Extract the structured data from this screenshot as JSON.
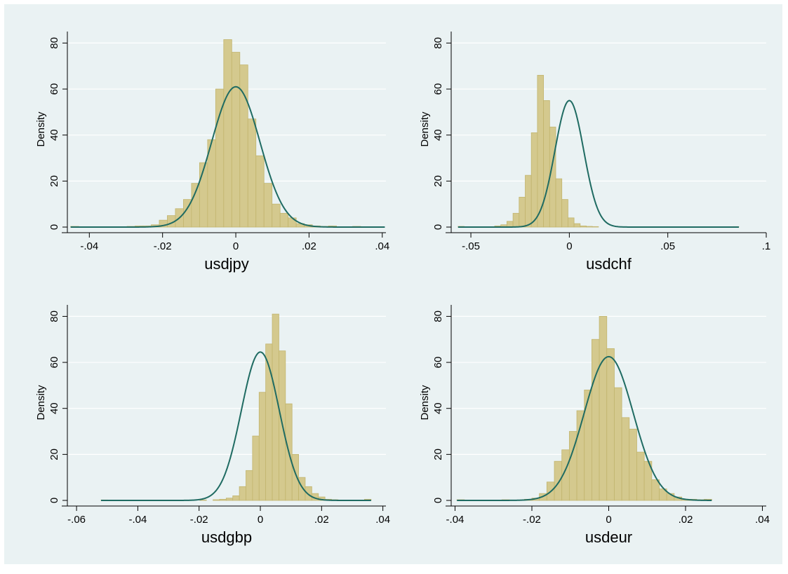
{
  "colors": {
    "background": "#ffffff",
    "plot_region": "#eaf2f3",
    "bar_fill": "#d4c98e",
    "bar_stroke": "#c2b56e",
    "curve": "#1f6b62",
    "grid": "#dfe9eb",
    "axis": "#000000"
  },
  "chart_data": [
    {
      "type": "bar",
      "xlabel": "usdjpy",
      "ylabel": "Density",
      "xlim": [
        -0.046,
        0.041
      ],
      "ylim": [
        0,
        85
      ],
      "xticks": [
        -0.04,
        -0.02,
        0,
        0.02,
        0.04
      ],
      "xtick_labels": [
        "-.04",
        "-.02",
        "0",
        ".02",
        ".04"
      ],
      "yticks": [
        0,
        20,
        40,
        60,
        80
      ],
      "ytick_labels": [
        "0",
        "20",
        "40",
        "60",
        "80"
      ],
      "bin_width": 0.0022,
      "bins_start": -0.0451,
      "values": [
        0.3,
        0,
        0,
        0,
        0,
        0,
        0,
        0.3,
        0.5,
        0.5,
        1,
        3,
        5,
        8,
        12,
        19,
        28,
        38,
        60,
        81.5,
        76,
        70.5,
        47,
        31,
        19,
        10,
        6,
        4,
        1.5,
        1,
        0.5,
        0.3,
        0.5,
        0,
        0,
        0.3,
        0,
        0,
        0
      ],
      "normal_curve": {
        "mean": 0,
        "peak": 61,
        "sd": 0.0066
      },
      "grid": true
    },
    {
      "type": "bar",
      "xlabel": "usdchf",
      "ylabel": "Density",
      "xlim": [
        -0.06,
        0.1
      ],
      "ylim": [
        0,
        85
      ],
      "xticks": [
        -0.05,
        0,
        0.05,
        0.1
      ],
      "xtick_labels": [
        "-.05",
        "0",
        ".05",
        ".1"
      ],
      "yticks": [
        0,
        20,
        40,
        60,
        80
      ],
      "ytick_labels": [
        "0",
        "20",
        "40",
        "60",
        "80"
      ],
      "bin_width": 0.0031,
      "bins_start": -0.0565,
      "values": [
        0.3,
        0,
        0,
        0,
        0,
        0,
        0.5,
        1,
        2.5,
        6,
        13,
        22.5,
        41,
        66,
        55,
        43.5,
        21,
        12,
        4,
        1.5,
        0.5,
        0.3,
        0.2,
        0,
        0,
        0,
        0,
        0,
        0,
        0,
        0,
        0,
        0,
        0,
        0,
        0,
        0,
        0,
        0,
        0,
        0,
        0,
        0,
        0,
        0,
        0.2
      ],
      "normal_curve": {
        "mean": 0,
        "peak": 55,
        "sd": 0.0073
      },
      "grid": true
    },
    {
      "type": "bar",
      "xlabel": "usdgbp",
      "ylabel": "Density",
      "xlim": [
        -0.063,
        0.041
      ],
      "ylim": [
        0,
        85
      ],
      "xticks": [
        -0.06,
        -0.04,
        -0.02,
        0,
        0.02,
        0.04
      ],
      "xtick_labels": [
        "-.06",
        "-.04",
        "-.02",
        "0",
        ".02",
        ".04"
      ],
      "yticks": [
        0,
        20,
        40,
        60,
        80
      ],
      "ytick_labels": [
        "0",
        "20",
        "40",
        "60",
        "80"
      ],
      "bin_width": 0.00215,
      "bins_start": -0.052,
      "values": [
        0.2,
        0,
        0,
        0,
        0,
        0,
        0,
        0,
        0,
        0,
        0,
        0,
        0,
        0,
        0,
        0.2,
        0,
        0.3,
        0.5,
        1,
        2,
        6,
        13,
        28,
        47,
        68,
        81,
        65,
        42,
        20,
        10,
        6,
        3,
        1.5,
        0.5,
        0.3,
        0,
        0,
        0,
        0,
        0.5
      ],
      "normal_curve": {
        "mean": 0,
        "peak": 64.5,
        "sd": 0.0062
      },
      "grid": true
    },
    {
      "type": "bar",
      "xlabel": "usdeur",
      "ylabel": "Density",
      "xlim": [
        -0.041,
        0.041
      ],
      "ylim": [
        0,
        85
      ],
      "xticks": [
        -0.04,
        -0.02,
        0,
        0.02,
        0.04
      ],
      "xtick_labels": [
        "-.04",
        "-.02",
        "0",
        ".02",
        ".04"
      ],
      "yticks": [
        0,
        20,
        40,
        60,
        80
      ],
      "ytick_labels": [
        "0",
        "20",
        "40",
        "60",
        "80"
      ],
      "bin_width": 0.00195,
      "bins_start": -0.0395,
      "values": [
        0.3,
        0,
        0,
        0,
        0,
        0,
        0.3,
        0,
        0,
        0.5,
        1,
        3,
        8,
        17,
        22,
        30,
        39,
        48,
        70,
        80,
        66,
        49,
        36,
        31,
        21,
        17,
        9,
        5,
        3,
        1.5,
        0.5,
        0.5,
        0.3,
        0.5
      ],
      "normal_curve": {
        "mean": 0,
        "peak": 62.5,
        "sd": 0.0064
      },
      "grid": true
    }
  ]
}
